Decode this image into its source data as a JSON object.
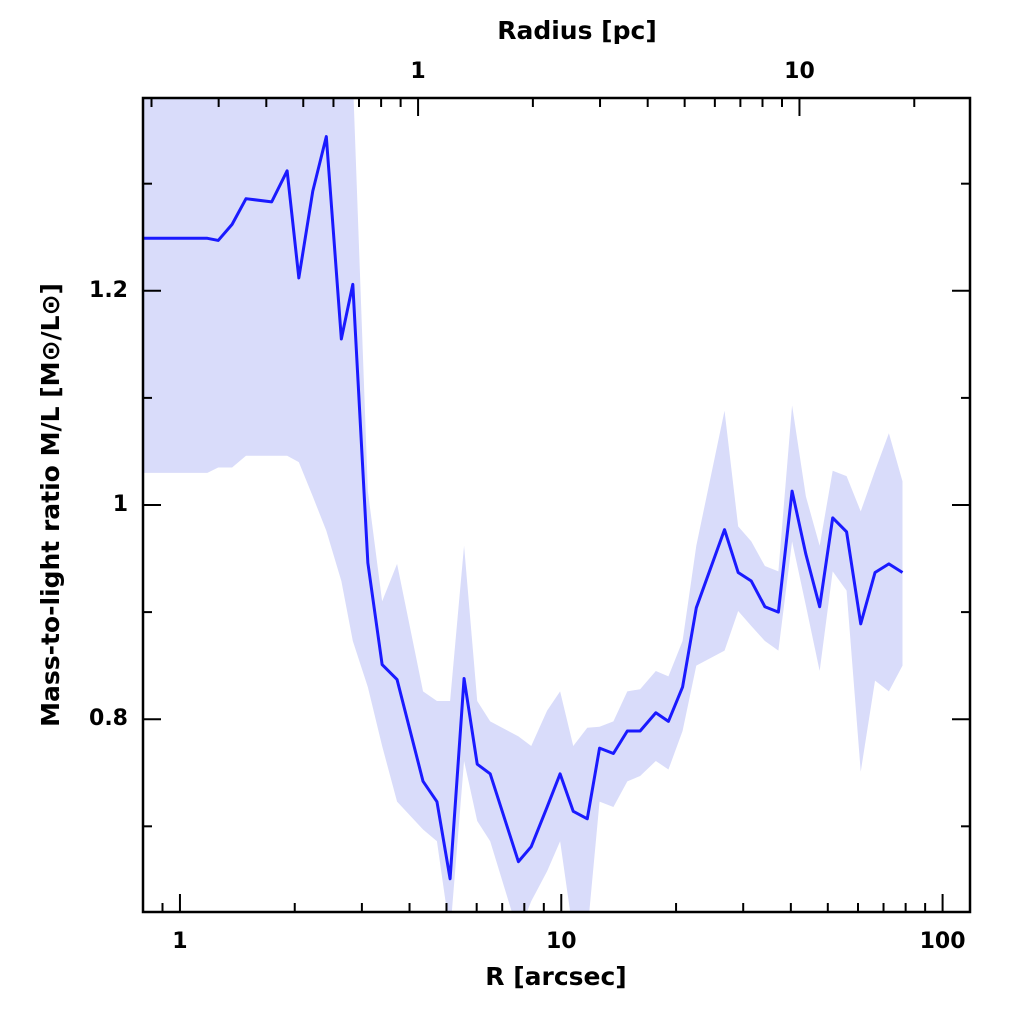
{
  "chart_data": {
    "type": "line",
    "title": "Radius [pc]",
    "xlabel": "R [arcsec]",
    "ylabel": "Mass-to-light ratio M/L [M⊙/L⊙]",
    "xscale": "log",
    "xlim": [
      0.8,
      118
    ],
    "xticks": [
      1,
      10,
      100
    ],
    "x2lim": [
      0.19,
      28
    ],
    "x2ticks": [
      1,
      10
    ],
    "ylim": [
      0.62,
      1.38
    ],
    "yticks": [
      0.8,
      1,
      1.2
    ],
    "minor_ticks": true,
    "color": "#1a1aff",
    "band_color": "#d9dcfa",
    "x": [
      0.8,
      1.18,
      1.26,
      1.37,
      1.49,
      1.74,
      1.91,
      2.05,
      2.23,
      2.42,
      2.65,
      2.84,
      3.11,
      3.39,
      3.71,
      4.34,
      4.72,
      5.11,
      5.56,
      6.02,
      6.51,
      7.72,
      8.34,
      9.18,
      9.93,
      10.75,
      11.7,
      12.6,
      13.7,
      14.9,
      16.1,
      17.7,
      19.1,
      20.8,
      22.6,
      26.8,
      29.1,
      31.5,
      34.2,
      37.1,
      40.3,
      43.8,
      47.6,
      51.5,
      56.0,
      61.0,
      66.5,
      72.3,
      78.5
    ],
    "values": [
      1.249,
      1.249,
      1.247,
      1.262,
      1.286,
      1.283,
      1.312,
      1.212,
      1.293,
      1.344,
      1.155,
      1.206,
      0.946,
      0.851,
      0.837,
      0.742,
      0.723,
      0.651,
      0.838,
      0.758,
      0.749,
      0.667,
      0.681,
      0.718,
      0.749,
      0.714,
      0.707,
      0.773,
      0.768,
      0.789,
      0.789,
      0.806,
      0.798,
      0.83,
      0.904,
      0.977,
      0.937,
      0.929,
      0.905,
      0.9,
      1.013,
      0.954,
      0.905,
      0.988,
      0.975,
      0.889,
      0.937,
      0.945,
      0.937
    ],
    "band_high": [
      1.4,
      1.4,
      1.4,
      1.4,
      1.4,
      1.4,
      1.4,
      1.4,
      1.4,
      1.4,
      1.4,
      1.4,
      1.013,
      0.91,
      0.945,
      0.826,
      0.817,
      0.817,
      0.962,
      0.817,
      0.798,
      0.784,
      0.775,
      0.808,
      0.826,
      0.775,
      0.792,
      0.793,
      0.798,
      0.826,
      0.828,
      0.845,
      0.84,
      0.873,
      0.962,
      1.088,
      0.98,
      0.966,
      0.943,
      0.938,
      1.093,
      1.008,
      0.962,
      1.032,
      1.027,
      0.994,
      1.032,
      1.067,
      1.022
    ],
    "band_low": [
      1.03,
      1.03,
      1.035,
      1.035,
      1.046,
      1.046,
      1.046,
      1.04,
      1.008,
      0.976,
      0.929,
      0.873,
      0.83,
      0.775,
      0.723,
      0.697,
      0.686,
      0.6,
      0.761,
      0.705,
      0.686,
      0.6,
      0.63,
      0.658,
      0.686,
      0.6,
      0.6,
      0.723,
      0.718,
      0.742,
      0.747,
      0.761,
      0.753,
      0.789,
      0.85,
      0.864,
      0.901,
      0.887,
      0.873,
      0.864,
      0.966,
      0.906,
      0.845,
      0.938,
      0.92,
      0.751,
      0.836,
      0.826,
      0.85
    ]
  }
}
